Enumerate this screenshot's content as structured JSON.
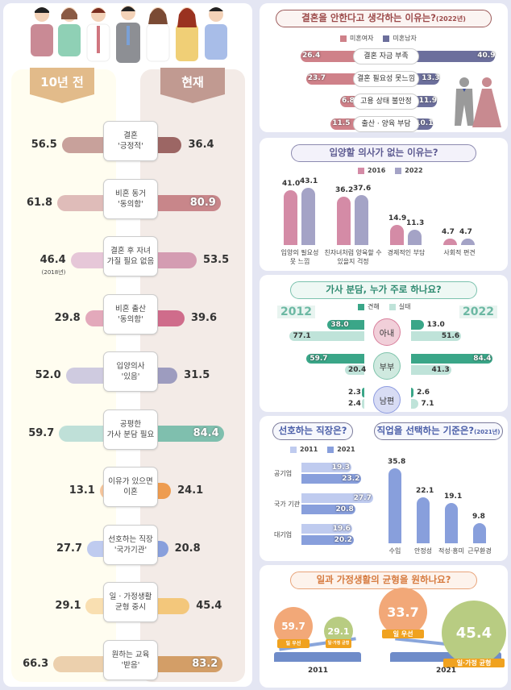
{
  "left_panel": {
    "past_label": "10년 전",
    "now_label": "현재",
    "rows": [
      {
        "label": "결혼\n'긍정적'",
        "past": "56.5",
        "now": "36.4",
        "past_color": "#c8a19b",
        "now_color": "#9c6664"
      },
      {
        "label": "비혼 동거\n'동의함'",
        "past": "61.8",
        "now": "80.9",
        "past_color": "#dfbcb9",
        "now_color": "#c8868a"
      },
      {
        "label": "결혼 후 자녀\n가질 필요 없음",
        "past": "46.4",
        "now": "53.5",
        "past_color": "#e6c7d8",
        "now_color": "#d49cb2",
        "past_note": "(2018년)"
      },
      {
        "label": "비혼 출산\n'동의함'",
        "past": "29.8",
        "now": "39.6",
        "past_color": "#e3a9bb",
        "now_color": "#cf6c8b"
      },
      {
        "label": "입양의사\n'있음'",
        "past": "52.0",
        "now": "31.5",
        "past_color": "#cfcbe0",
        "now_color": "#9d9cbf"
      },
      {
        "label": "공평한\n가사 분담 필요",
        "past": "59.7",
        "now": "84.4",
        "past_color": "#bfe0d8",
        "now_color": "#7fbfae"
      },
      {
        "label": "이유가 있으면\n이혼",
        "past": "13.1",
        "now": "24.1",
        "past_color": "#f6c59b",
        "now_color": "#ee9c50"
      },
      {
        "label": "선호하는 직장\n'국가기관'",
        "past": "27.7",
        "now": "20.8",
        "past_color": "#bfcbef",
        "now_color": "#889fdc"
      },
      {
        "label": "일 · 가정생활\n균형 중시",
        "past": "29.1",
        "now": "45.4",
        "past_color": "#f9dfb1",
        "now_color": "#f3c77b"
      },
      {
        "label": "원하는 교육\n'받음'",
        "past": "66.3",
        "now": "83.2",
        "past_color": "#ecd0ad",
        "now_color": "#d39e67"
      }
    ]
  },
  "marriage_reasons": {
    "title": "결혼을 안한다고 생각하는 이유는?",
    "title_suffix": "(2022년)",
    "legend": [
      "미혼여자",
      "미혼남자"
    ],
    "colors": [
      "#cf8189",
      "#6c6f9c"
    ],
    "items": [
      {
        "label": "결혼 자금 부족",
        "female": "26.4",
        "male": "40.9"
      },
      {
        "label": "결혼 필요성 못느낌",
        "female": "23.7",
        "male": "13.3"
      },
      {
        "label": "고용 상태 불안정",
        "female": "6.8",
        "male": "11.9"
      },
      {
        "label": "출산 · 양육 부담",
        "female": "11.5",
        "male": "10.1"
      }
    ]
  },
  "adoption": {
    "title": "입양할 의사가 없는 이유는?",
    "legend": [
      "2016",
      "2022"
    ],
    "colors": [
      "#d48ba6",
      "#a4a3c6"
    ],
    "items": [
      {
        "label": "입양의 필요성\n못 느낌",
        "v2016": "41.0",
        "v2022": "43.1"
      },
      {
        "label": "친자녀처럼 양육할 수\n있을지 걱정",
        "v2016": "36.2",
        "v2022": "37.6"
      },
      {
        "label": "경제적인 부담",
        "v2016": "14.9",
        "v2022": "11.3"
      },
      {
        "label": "사회적 편견",
        "v2016": "4.7",
        "v2022": "4.7"
      }
    ]
  },
  "housework": {
    "title": "가사 분담, 누가 주로 하나요?",
    "year_left": "2012",
    "year_right": "2022",
    "legend": [
      "견해",
      "실태"
    ],
    "colors": [
      "#3aa688",
      "#bfe3d9"
    ],
    "groups": [
      {
        "label": "아내",
        "view2012": "38.0",
        "real2012": "77.1",
        "view2022": "13.0",
        "real2022": "51.6"
      },
      {
        "label": "부부",
        "view2012": "59.7",
        "real2012": "20.4",
        "view2022": "84.4",
        "real2022": "41.3"
      },
      {
        "label": "남편",
        "view2012": "2.3",
        "real2012": "2.4",
        "view2022": "2.6",
        "real2022": "7.1"
      }
    ]
  },
  "workplace": {
    "title": "선호하는 직장은?",
    "legend": [
      "2011",
      "2021"
    ],
    "colors": [
      "#bfcbef",
      "#889fdc"
    ],
    "items": [
      {
        "label": "공기업",
        "v2011": "19.3",
        "v2021": "23.2"
      },
      {
        "label": "국가 기관",
        "v2011": "27.7",
        "v2021": "20.8"
      },
      {
        "label": "대기업",
        "v2011": "19.6",
        "v2021": "20.2"
      }
    ]
  },
  "job_criteria": {
    "title": "직업을 선택하는 기준은?",
    "title_suffix": "(2021년)",
    "items": [
      {
        "label": "수입",
        "value": "35.8"
      },
      {
        "label": "안정성",
        "value": "22.1"
      },
      {
        "label": "적성·흥미",
        "value": "19.1"
      },
      {
        "label": "근무환경",
        "value": "9.8"
      }
    ]
  },
  "work_life": {
    "title": "일과 가정생활의 균형을 원하나요?",
    "years": [
      {
        "year": "2011",
        "work_first": "59.7",
        "balance": "29.1"
      },
      {
        "year": "2021",
        "work_first": "33.7",
        "balance": "45.4"
      }
    ],
    "work_label": "일 우선",
    "balance_label": "일·가정 균형"
  },
  "chart_data": [
    {
      "type": "bar",
      "title": "10년 전 vs 현재",
      "categories": [
        "결혼 '긍정적'",
        "비혼 동거 '동의함'",
        "결혼 후 자녀 가질 필요 없음",
        "비혼 출산 '동의함'",
        "입양의사 '있음'",
        "공평한 가사 분담 필요",
        "이유가 있으면 이혼",
        "선호하는 직장 '국가기관'",
        "일·가정생활 균형 중시",
        "원하는 교육 '받음'"
      ],
      "series": [
        {
          "name": "10년 전",
          "values": [
            56.5,
            61.8,
            46.4,
            29.8,
            52.0,
            59.7,
            13.1,
            27.7,
            29.1,
            66.3
          ]
        },
        {
          "name": "현재",
          "values": [
            36.4,
            80.9,
            53.5,
            39.6,
            31.5,
            84.4,
            24.1,
            20.8,
            45.4,
            83.2
          ]
        }
      ]
    },
    {
      "type": "bar",
      "title": "결혼을 안한다고 생각하는 이유는?(2022년)",
      "categories": [
        "결혼 자금 부족",
        "결혼 필요성 못느낌",
        "고용 상태 불안정",
        "출산 · 양육 부담"
      ],
      "series": [
        {
          "name": "미혼여자",
          "values": [
            26.4,
            23.7,
            6.8,
            11.5
          ]
        },
        {
          "name": "미혼남자",
          "values": [
            40.9,
            13.3,
            11.9,
            10.1
          ]
        }
      ]
    },
    {
      "type": "bar",
      "title": "입양할 의사가 없는 이유는?",
      "categories": [
        "입양의 필요성 못 느낌",
        "친자녀처럼 양육할 수 있을지 걱정",
        "경제적인 부담",
        "사회적 편견"
      ],
      "series": [
        {
          "name": "2016",
          "values": [
            41.0,
            36.2,
            14.9,
            4.7
          ]
        },
        {
          "name": "2022",
          "values": [
            43.1,
            37.6,
            11.3,
            4.7
          ]
        }
      ]
    },
    {
      "type": "bar",
      "title": "가사 분담, 누가 주로 하나요?",
      "categories": [
        "아내",
        "부부",
        "남편"
      ],
      "series": [
        {
          "name": "2012 견해",
          "values": [
            38.0,
            59.7,
            2.3
          ]
        },
        {
          "name": "2012 실태",
          "values": [
            77.1,
            20.4,
            2.4
          ]
        },
        {
          "name": "2022 견해",
          "values": [
            13.0,
            84.4,
            2.6
          ]
        },
        {
          "name": "2022 실태",
          "values": [
            51.6,
            41.3,
            7.1
          ]
        }
      ]
    },
    {
      "type": "bar",
      "title": "선호하는 직장은?",
      "categories": [
        "공기업",
        "국가 기관",
        "대기업"
      ],
      "series": [
        {
          "name": "2011",
          "values": [
            19.3,
            27.7,
            19.6
          ]
        },
        {
          "name": "2021",
          "values": [
            23.2,
            20.8,
            20.2
          ]
        }
      ]
    },
    {
      "type": "bar",
      "title": "직업을 선택하는 기준은?(2021년)",
      "categories": [
        "수입",
        "안정성",
        "적성·흥미",
        "근무환경"
      ],
      "values": [
        35.8,
        22.1,
        19.1,
        9.8
      ]
    },
    {
      "type": "bar",
      "title": "일과 가정생활의 균형을 원하나요?",
      "categories": [
        "2011",
        "2021"
      ],
      "series": [
        {
          "name": "일 우선",
          "values": [
            59.7,
            33.7
          ]
        },
        {
          "name": "일·가정 균형",
          "values": [
            29.1,
            45.4
          ]
        }
      ]
    }
  ]
}
